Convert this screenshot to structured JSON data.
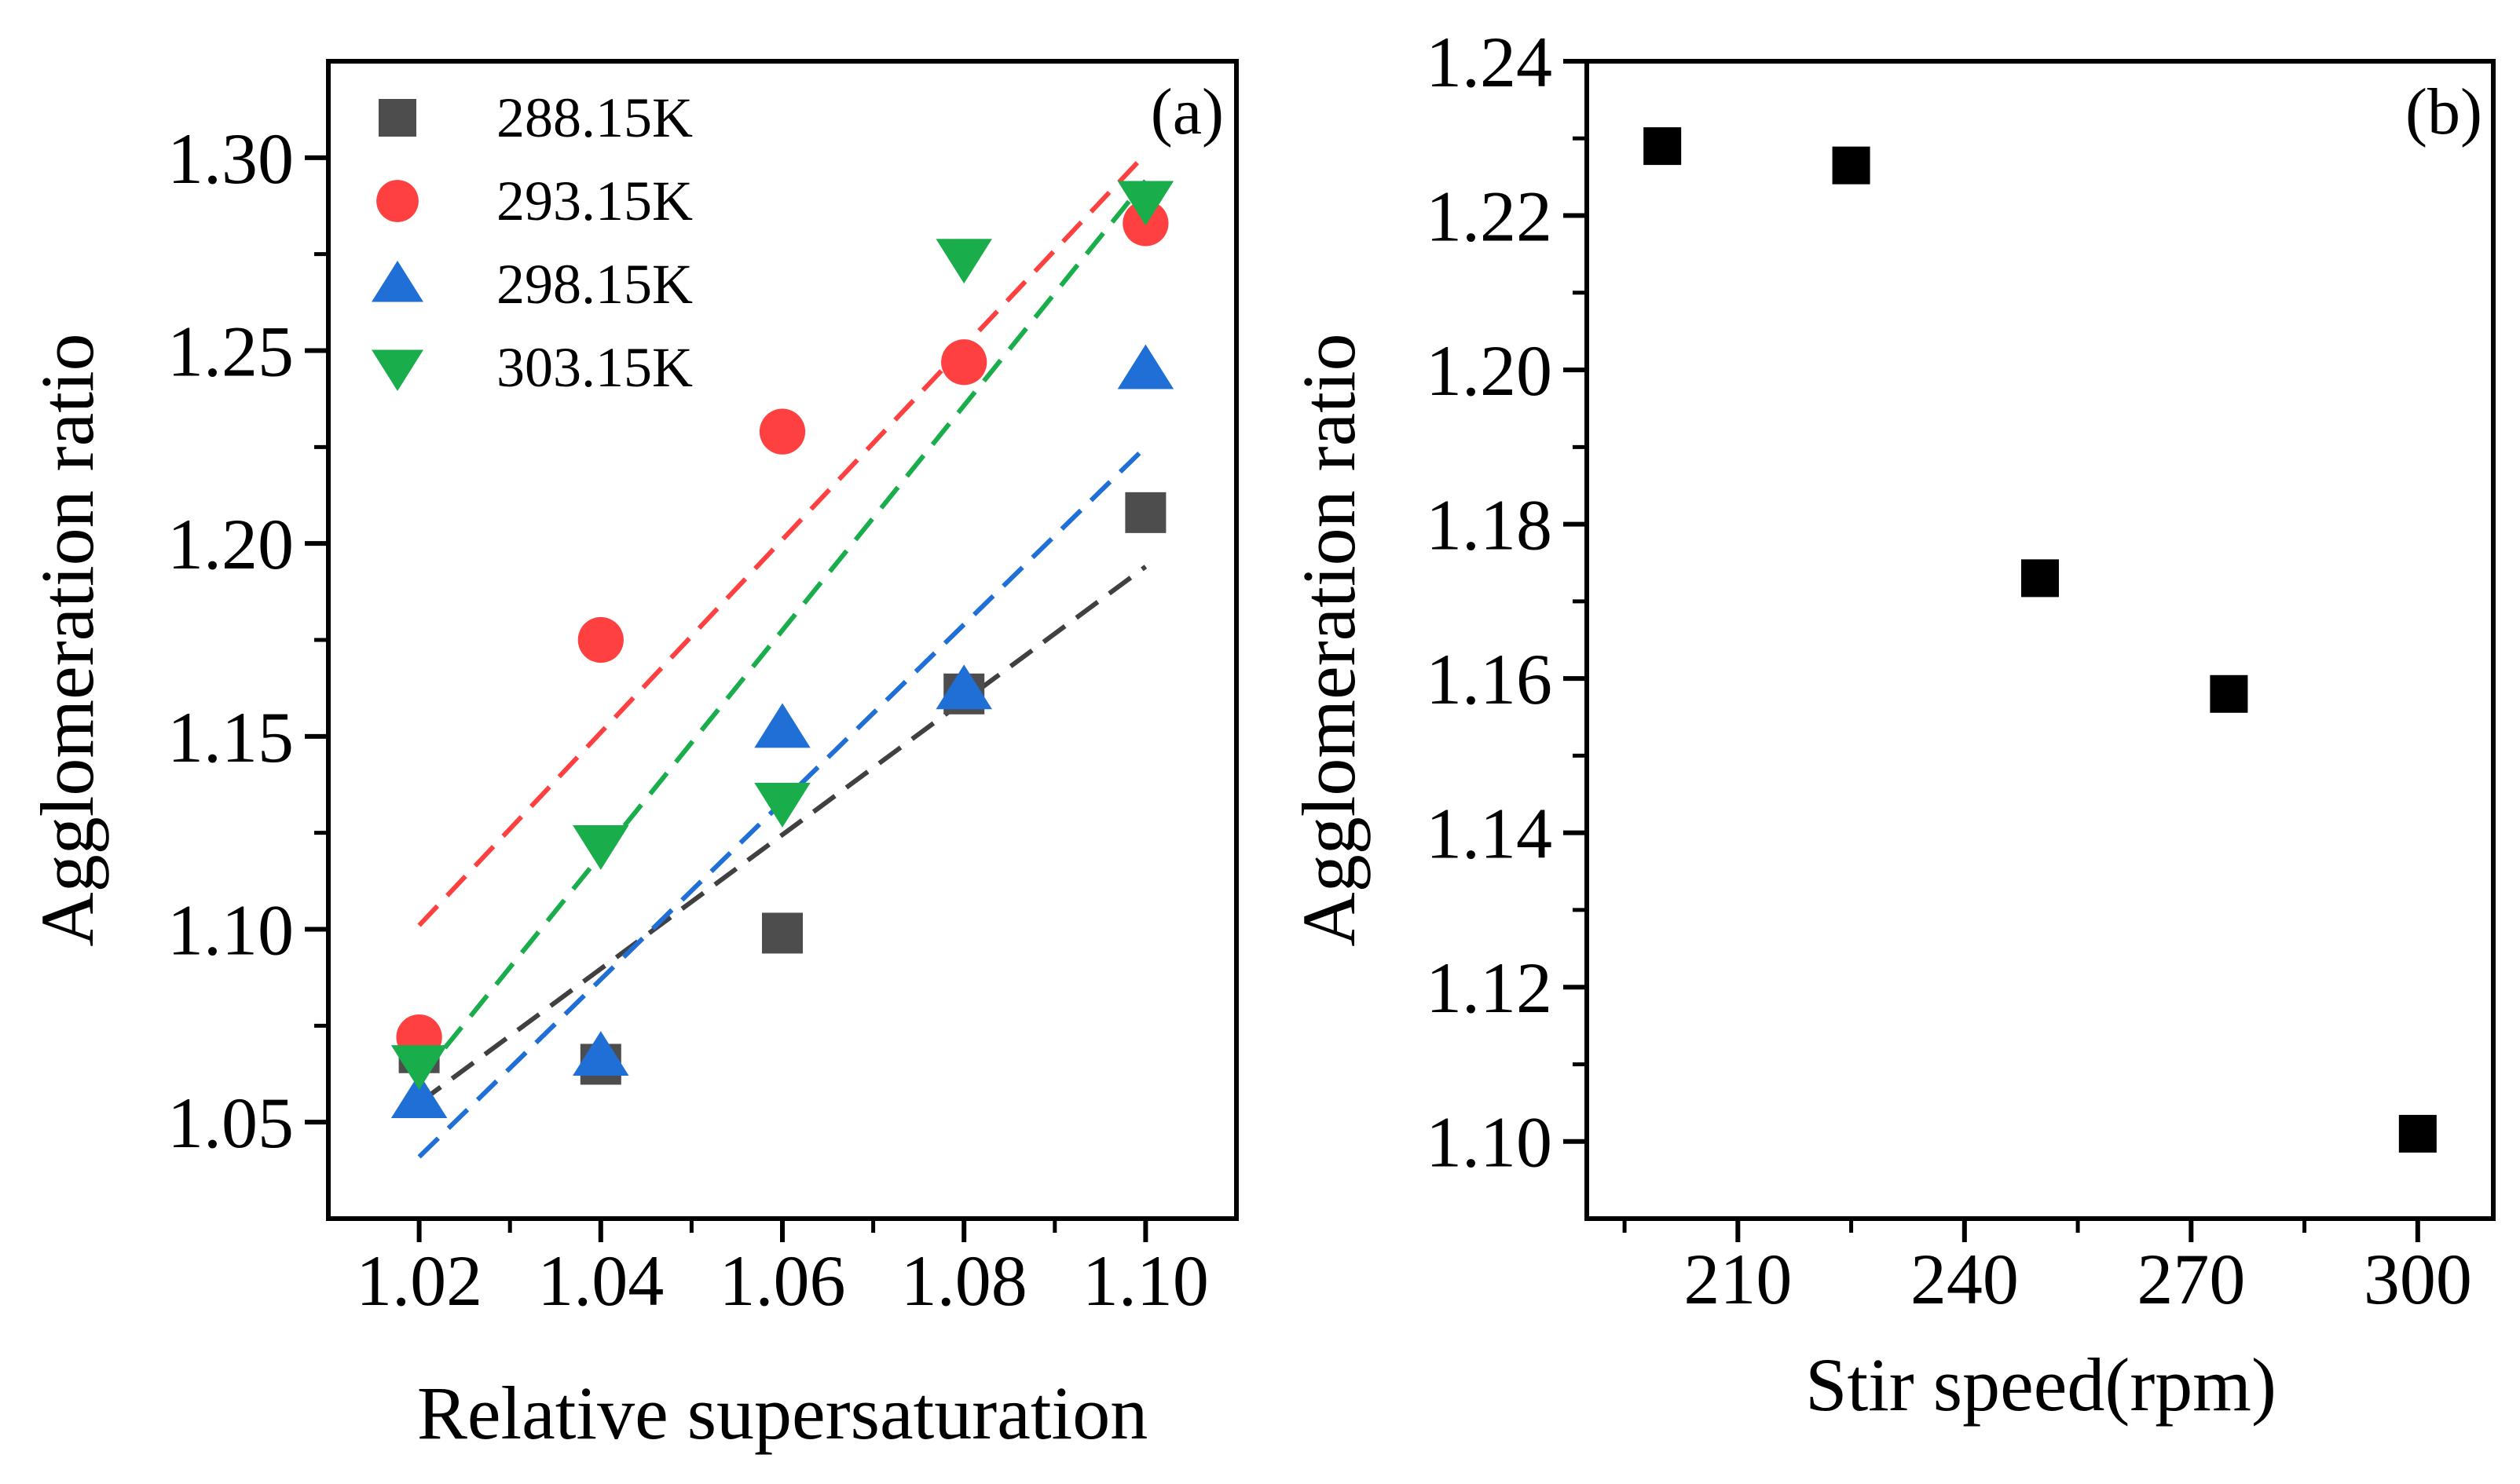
{
  "chart_data": [
    {
      "panel": "(a)",
      "type": "scatter",
      "xlabel": "Relative supersaturation",
      "ylabel": "Agglomeration ratio",
      "xlim": [
        1.01,
        1.11
      ],
      "ylim": [
        1.025,
        1.325
      ],
      "xticks": [
        {
          "value": 1.02,
          "label": "1.02"
        },
        {
          "value": 1.04,
          "label": "1.04"
        },
        {
          "value": 1.06,
          "label": "1.06"
        },
        {
          "value": 1.08,
          "label": "1.08"
        },
        {
          "value": 1.1,
          "label": "1.10"
        }
      ],
      "yticks": [
        {
          "value": 1.05,
          "label": "1.05"
        },
        {
          "value": 1.1,
          "label": "1.10"
        },
        {
          "value": 1.15,
          "label": "1.15"
        },
        {
          "value": 1.2,
          "label": "1.20"
        },
        {
          "value": 1.25,
          "label": "1.25"
        },
        {
          "value": 1.3,
          "label": "1.30"
        }
      ],
      "grid": false,
      "legend_position": "top-left",
      "series": [
        {
          "name": "288.15K",
          "marker": "square",
          "color": "#4d4d4d",
          "line_color": "#404040",
          "x": [
            1.02,
            1.04,
            1.06,
            1.08,
            1.1
          ],
          "y": [
            1.068,
            1.065,
            1.099,
            1.161,
            1.208
          ],
          "fit": [
            [
              1.02,
              1.055
            ],
            [
              1.1,
              1.194
            ]
          ]
        },
        {
          "name": "293.15K",
          "marker": "circle",
          "color": "#ff4040",
          "line_color": "#ff4040",
          "x": [
            1.02,
            1.04,
            1.06,
            1.08,
            1.1
          ],
          "y": [
            1.072,
            1.175,
            1.229,
            1.247,
            1.283
          ],
          "fit": [
            [
              1.02,
              1.101
            ],
            [
              1.1,
              1.301
            ]
          ]
        },
        {
          "name": "298.15K",
          "marker": "triangle-up",
          "color": "#1f6fd6",
          "line_color": "#1f6fd6",
          "x": [
            1.02,
            1.04,
            1.06,
            1.08,
            1.1
          ],
          "y": [
            1.056,
            1.067,
            1.152,
            1.162,
            1.245
          ],
          "fit": [
            [
              1.02,
              1.041
            ],
            [
              1.1,
              1.225
            ]
          ]
        },
        {
          "name": "303.15K",
          "marker": "triangle-down",
          "color": "#1aad4c",
          "line_color": "#1aad4c",
          "x": [
            1.02,
            1.04,
            1.06,
            1.08,
            1.1
          ],
          "y": [
            1.065,
            1.122,
            1.133,
            1.274,
            1.289
          ],
          "fit": [
            [
              1.02,
              1.061
            ],
            [
              1.1,
              1.294
            ]
          ]
        }
      ]
    },
    {
      "panel": "(b)",
      "type": "scatter",
      "xlabel": "Stir speed(rpm)",
      "ylabel": "Agglomeration ratio",
      "xlim": [
        190,
        310
      ],
      "ylim": [
        1.09,
        1.24
      ],
      "xticks": [
        {
          "value": 210,
          "label": "210"
        },
        {
          "value": 240,
          "label": "240"
        },
        {
          "value": 270,
          "label": "270"
        },
        {
          "value": 300,
          "label": "300"
        }
      ],
      "yticks": [
        {
          "value": 1.1,
          "label": "1.10"
        },
        {
          "value": 1.12,
          "label": "1.12"
        },
        {
          "value": 1.14,
          "label": "1.14"
        },
        {
          "value": 1.16,
          "label": "1.16"
        },
        {
          "value": 1.18,
          "label": "1.18"
        },
        {
          "value": 1.2,
          "label": "1.20"
        },
        {
          "value": 1.22,
          "label": "1.22"
        },
        {
          "value": 1.24,
          "label": "1.24"
        }
      ],
      "grid": false,
      "series": [
        {
          "marker": "square",
          "color": "#000000",
          "x": [
            200,
            225,
            250,
            275,
            300
          ],
          "y": [
            1.229,
            1.2265,
            1.173,
            1.158,
            1.101
          ]
        }
      ]
    }
  ]
}
